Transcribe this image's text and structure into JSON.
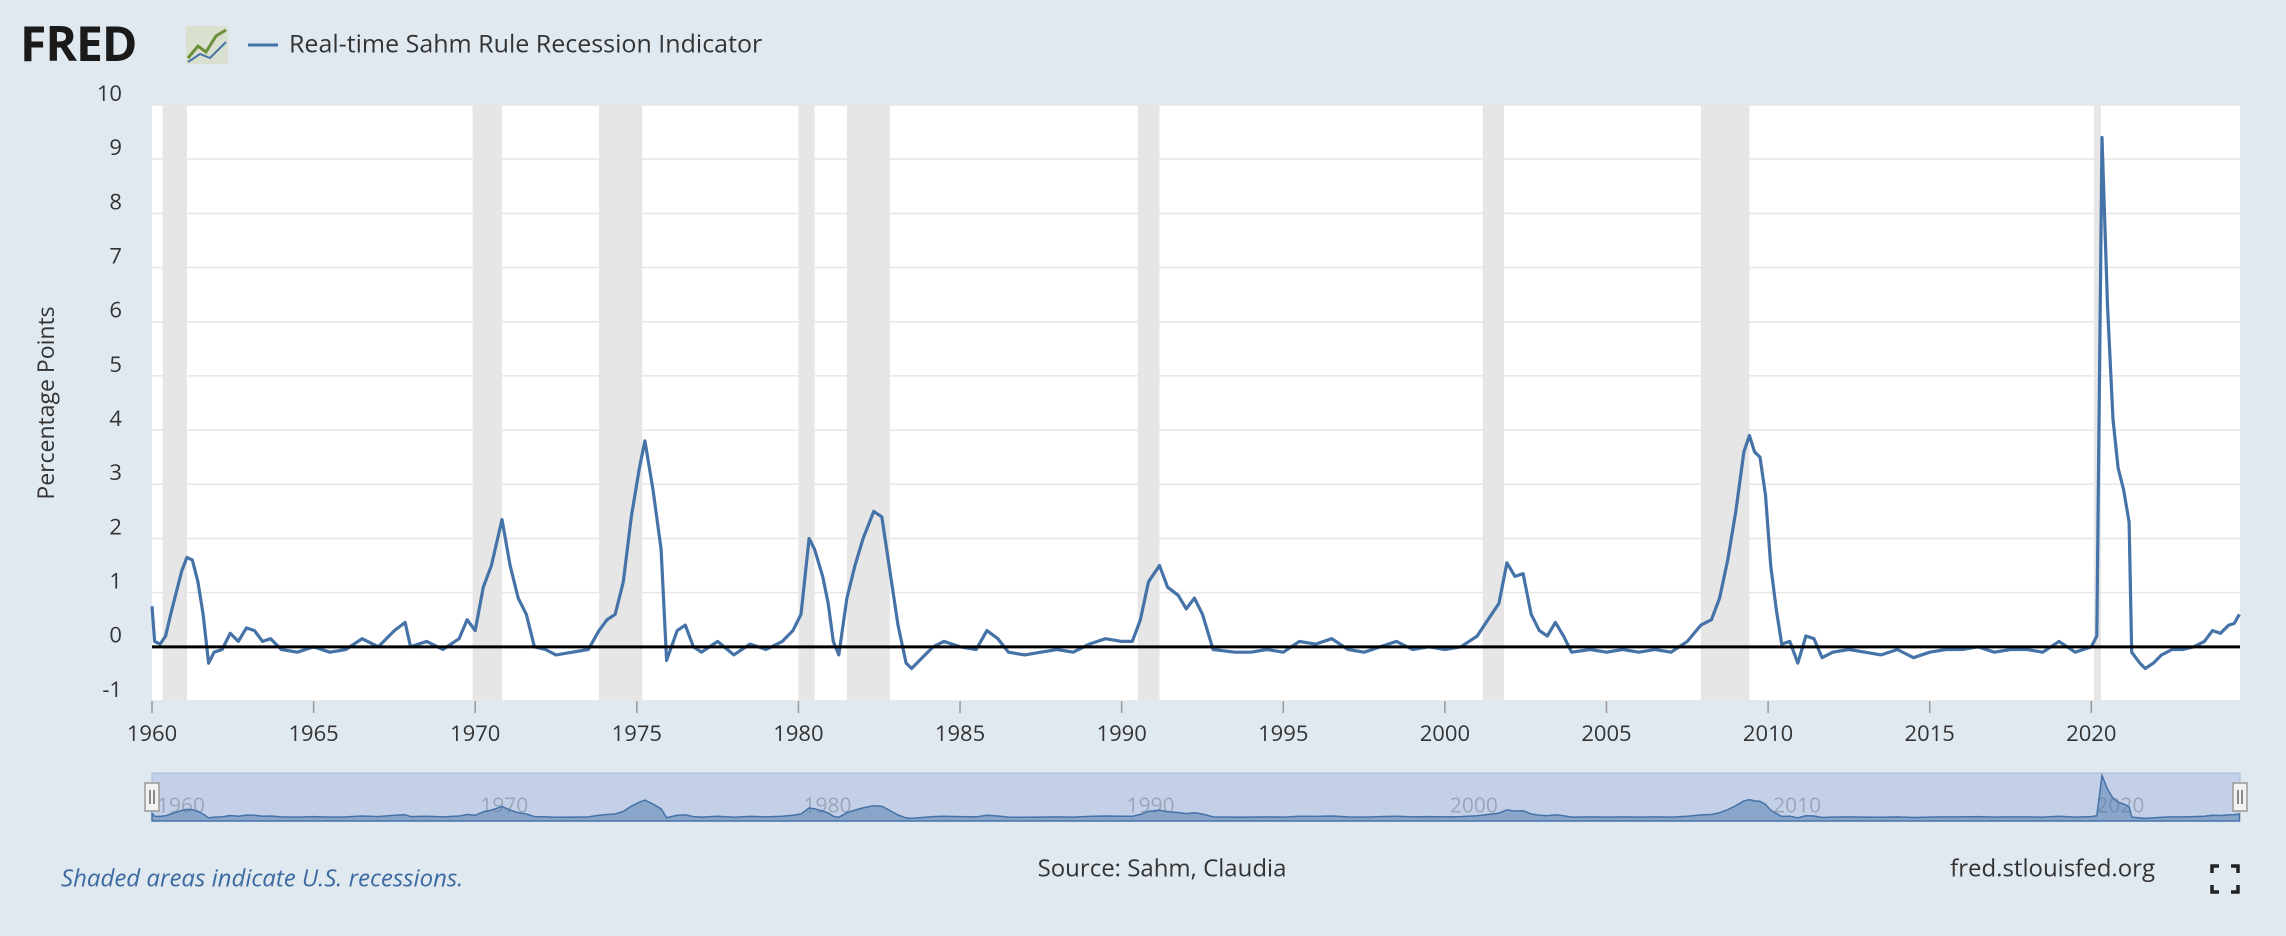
{
  "chart_data": {
    "type": "line",
    "logo": "FRED",
    "y_label": "Percentage Points",
    "note": "Shaded areas indicate U.S. recessions.",
    "source": "Source: Sahm, Claudia",
    "site": "fred.stlouisfed.org",
    "xlim": [
      1960,
      2024.6
    ],
    "xticks": [
      1960,
      1965,
      1970,
      1975,
      1980,
      1985,
      1990,
      1995,
      2000,
      2005,
      2010,
      2015,
      2020
    ],
    "ylim": [
      -1,
      10
    ],
    "yticks": [
      -1,
      0,
      1,
      2,
      3,
      4,
      5,
      6,
      7,
      8,
      9,
      10
    ],
    "grid": true,
    "navigator_ticks": [
      1960,
      1970,
      1980,
      1990,
      2000,
      2010,
      2020
    ],
    "recessions": [
      [
        1960.33,
        1961.08
      ],
      [
        1969.92,
        1970.83
      ],
      [
        1973.83,
        1975.17
      ],
      [
        1980.0,
        1980.5
      ],
      [
        1981.5,
        1982.83
      ],
      [
        1990.5,
        1991.17
      ],
      [
        2001.17,
        2001.83
      ],
      [
        2007.92,
        2009.42
      ],
      [
        2020.08,
        2020.3
      ]
    ],
    "series": [
      {
        "name": "Real-time Sahm Rule Recession Indicator",
        "color": "#4572a7",
        "x": [
          1960.0,
          1960.08,
          1960.25,
          1960.42,
          1960.58,
          1960.75,
          1960.92,
          1961.08,
          1961.25,
          1961.42,
          1961.58,
          1961.75,
          1961.92,
          1962.17,
          1962.42,
          1962.67,
          1962.92,
          1963.17,
          1963.42,
          1963.67,
          1964.0,
          1964.5,
          1965.0,
          1965.5,
          1966.0,
          1966.5,
          1967.0,
          1967.5,
          1967.83,
          1968.0,
          1968.5,
          1969.0,
          1969.5,
          1969.75,
          1970.0,
          1970.25,
          1970.5,
          1970.83,
          1971.08,
          1971.33,
          1971.58,
          1971.83,
          1972.17,
          1972.5,
          1973.0,
          1973.5,
          1973.83,
          1974.08,
          1974.33,
          1974.58,
          1974.83,
          1975.08,
          1975.25,
          1975.5,
          1975.75,
          1975.92,
          1976.25,
          1976.5,
          1976.75,
          1977.0,
          1977.5,
          1978.0,
          1978.5,
          1979.0,
          1979.5,
          1979.83,
          1980.08,
          1980.33,
          1980.5,
          1980.75,
          1980.92,
          1981.08,
          1981.25,
          1981.5,
          1981.75,
          1982.0,
          1982.33,
          1982.58,
          1982.83,
          1983.08,
          1983.33,
          1983.5,
          1983.83,
          1984.17,
          1984.5,
          1985.0,
          1985.5,
          1985.83,
          1986.17,
          1986.5,
          1987.0,
          1987.5,
          1988.0,
          1988.5,
          1989.0,
          1989.5,
          1990.0,
          1990.33,
          1990.58,
          1990.83,
          1991.17,
          1991.42,
          1991.75,
          1992.0,
          1992.25,
          1992.5,
          1992.83,
          1993.5,
          1994.0,
          1994.5,
          1995.0,
          1995.5,
          1996.0,
          1996.5,
          1997.0,
          1997.5,
          1998.0,
          1998.5,
          1999.0,
          1999.5,
          2000.0,
          2000.5,
          2001.0,
          2001.33,
          2001.67,
          2001.92,
          2002.17,
          2002.42,
          2002.67,
          2002.92,
          2003.17,
          2003.42,
          2003.67,
          2003.92,
          2004.5,
          2005.0,
          2005.5,
          2006.0,
          2006.5,
          2007.0,
          2007.5,
          2007.92,
          2008.25,
          2008.5,
          2008.75,
          2009.0,
          2009.25,
          2009.42,
          2009.58,
          2009.75,
          2009.92,
          2010.08,
          2010.25,
          2010.42,
          2010.67,
          2010.92,
          2011.17,
          2011.42,
          2011.67,
          2012.0,
          2012.5,
          2013.0,
          2013.5,
          2014.0,
          2014.5,
          2015.0,
          2015.5,
          2016.0,
          2016.5,
          2017.0,
          2017.5,
          2018.0,
          2018.5,
          2019.0,
          2019.5,
          2020.0,
          2020.17,
          2020.33,
          2020.5,
          2020.67,
          2020.83,
          2021.0,
          2021.17,
          2021.25,
          2021.5,
          2021.67,
          2021.92,
          2022.17,
          2022.5,
          2022.83,
          2023.17,
          2023.5,
          2023.75,
          2024.0,
          2024.25,
          2024.42,
          2024.58
        ],
        "values": [
          0.75,
          0.1,
          0.05,
          0.2,
          0.6,
          1.0,
          1.4,
          1.65,
          1.6,
          1.2,
          0.6,
          -0.3,
          -0.1,
          -0.05,
          0.25,
          0.1,
          0.35,
          0.3,
          0.1,
          0.15,
          -0.05,
          -0.1,
          0.0,
          -0.1,
          -0.05,
          0.15,
          0.0,
          0.3,
          0.45,
          0.0,
          0.1,
          -0.05,
          0.15,
          0.5,
          0.3,
          1.1,
          1.5,
          2.35,
          1.5,
          0.9,
          0.6,
          0.0,
          -0.05,
          -0.15,
          -0.1,
          -0.05,
          0.3,
          0.5,
          0.6,
          1.2,
          2.4,
          3.3,
          3.8,
          2.9,
          1.8,
          -0.25,
          0.3,
          0.4,
          0.0,
          -0.1,
          0.1,
          -0.15,
          0.05,
          -0.05,
          0.1,
          0.3,
          0.6,
          2.0,
          1.8,
          1.3,
          0.8,
          0.1,
          -0.15,
          0.9,
          1.5,
          2.0,
          2.5,
          2.4,
          1.4,
          0.4,
          -0.3,
          -0.4,
          -0.2,
          0.0,
          0.1,
          0.0,
          -0.05,
          0.3,
          0.15,
          -0.1,
          -0.15,
          -0.1,
          -0.05,
          -0.1,
          0.05,
          0.15,
          0.1,
          0.1,
          0.5,
          1.2,
          1.5,
          1.1,
          0.95,
          0.7,
          0.9,
          0.6,
          -0.05,
          -0.1,
          -0.1,
          -0.05,
          -0.1,
          0.1,
          0.05,
          0.15,
          -0.05,
          -0.1,
          0.0,
          0.1,
          -0.05,
          0.0,
          -0.05,
          0.0,
          0.2,
          0.5,
          0.8,
          1.55,
          1.3,
          1.35,
          0.6,
          0.3,
          0.2,
          0.45,
          0.2,
          -0.1,
          -0.05,
          -0.1,
          -0.05,
          -0.1,
          -0.05,
          -0.1,
          0.1,
          0.4,
          0.5,
          0.9,
          1.6,
          2.5,
          3.6,
          3.9,
          3.6,
          3.5,
          2.8,
          1.5,
          0.7,
          0.05,
          0.1,
          -0.3,
          0.2,
          0.15,
          -0.2,
          -0.1,
          -0.05,
          -0.1,
          -0.15,
          -0.05,
          -0.2,
          -0.1,
          -0.05,
          -0.05,
          0.0,
          -0.1,
          -0.05,
          -0.05,
          -0.1,
          0.1,
          -0.1,
          0.0,
          0.2,
          9.4,
          6.3,
          4.2,
          3.3,
          2.9,
          2.3,
          -0.1,
          -0.3,
          -0.4,
          -0.3,
          -0.15,
          -0.05,
          -0.05,
          0.0,
          0.1,
          0.3,
          0.25,
          0.4,
          0.43,
          0.6
        ]
      }
    ]
  }
}
